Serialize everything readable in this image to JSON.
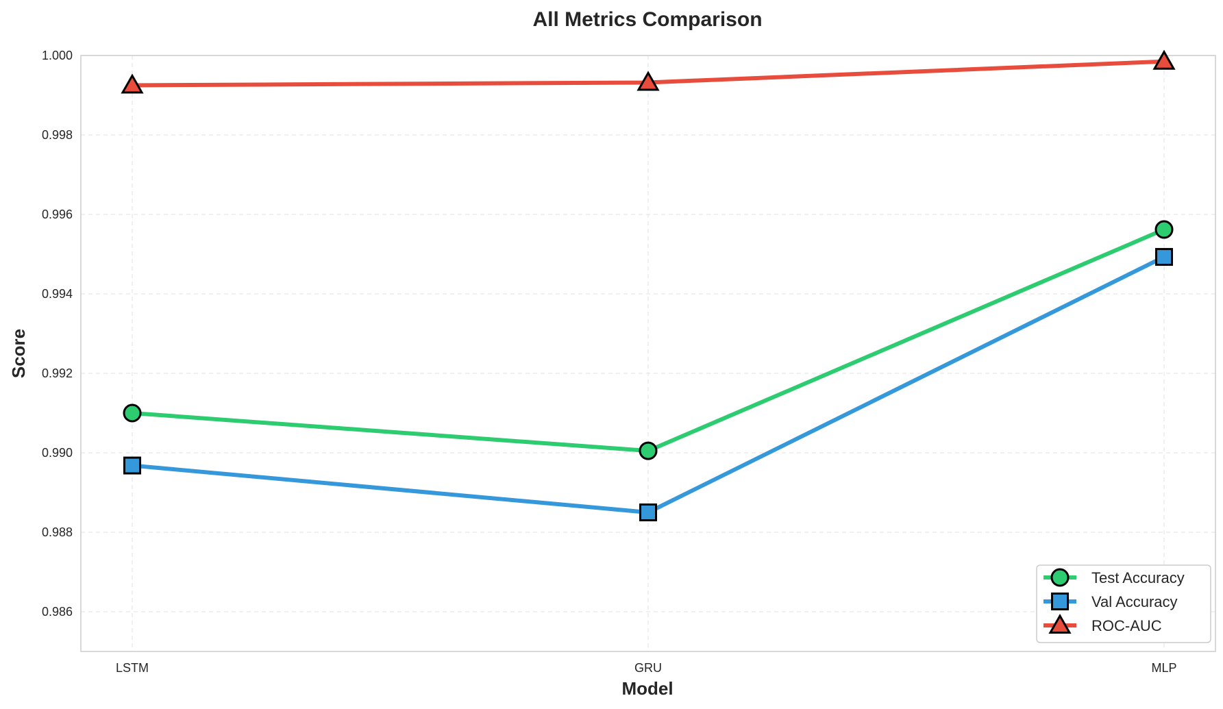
{
  "chart_data": {
    "type": "line",
    "title": "All Metrics Comparison",
    "xlabel": "Model",
    "ylabel": "Score",
    "categories": [
      "LSTM",
      "GRU",
      "MLP"
    ],
    "ylim": [
      0.985,
      1.0
    ],
    "yticks": [
      "0.986",
      "0.988",
      "0.990",
      "0.992",
      "0.994",
      "0.996",
      "0.998",
      "1.000"
    ],
    "grid": true,
    "legend_position": "bottom-right",
    "series": [
      {
        "name": "Test Accuracy",
        "values": [
          0.991,
          0.99005,
          0.99562
        ],
        "color": "#2ecc71",
        "marker": "circle"
      },
      {
        "name": "Val Accuracy",
        "values": [
          0.98968,
          0.9885,
          0.99493
        ],
        "color": "#3498db",
        "marker": "square"
      },
      {
        "name": "ROC-AUC",
        "values": [
          0.99925,
          0.99932,
          0.99985
        ],
        "color": "#e74c3c",
        "marker": "triangle"
      }
    ]
  }
}
